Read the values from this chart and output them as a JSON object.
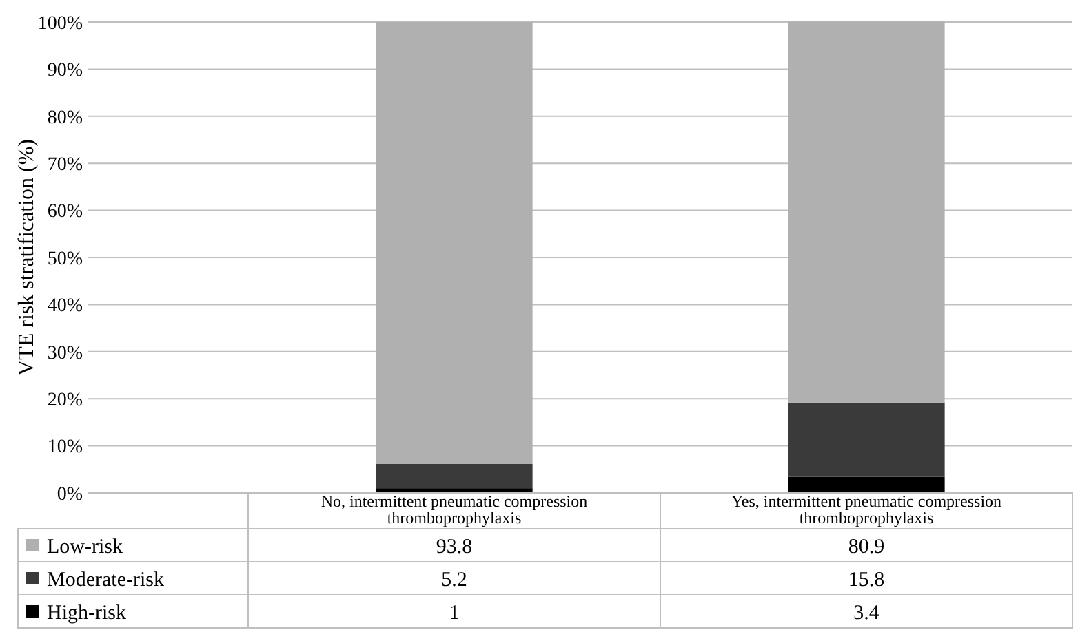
{
  "chart_data": {
    "type": "bar",
    "ylabel": "VTE risk stratification (%)",
    "categories": [
      "No, intermittent pneumatic compression thromboprophylaxis",
      "Yes, intermittent pneumatic compression thromboprophylaxis"
    ],
    "series": [
      {
        "name": "High-risk",
        "color": "#000000",
        "values": [
          1,
          3.4
        ]
      },
      {
        "name": "Moderate-risk",
        "color": "#3a3a3a",
        "values": [
          5.2,
          15.8
        ]
      },
      {
        "name": "Low-risk",
        "color": "#b0b0b0",
        "values": [
          93.8,
          80.9
        ]
      }
    ],
    "stacked": true,
    "ylim": [
      0,
      100
    ],
    "yticks": [
      {
        "value": 0,
        "label": "0%"
      },
      {
        "value": 10,
        "label": "10%"
      },
      {
        "value": 20,
        "label": "20%"
      },
      {
        "value": 30,
        "label": "30%"
      },
      {
        "value": 40,
        "label": "40%"
      },
      {
        "value": 50,
        "label": "50%"
      },
      {
        "value": 60,
        "label": "60%"
      },
      {
        "value": 70,
        "label": "70%"
      },
      {
        "value": 80,
        "label": "80%"
      },
      {
        "value": 90,
        "label": "90%"
      },
      {
        "value": 100,
        "label": "100%"
      }
    ],
    "grid": "y",
    "legend": "bottom",
    "data_labels": true
  }
}
